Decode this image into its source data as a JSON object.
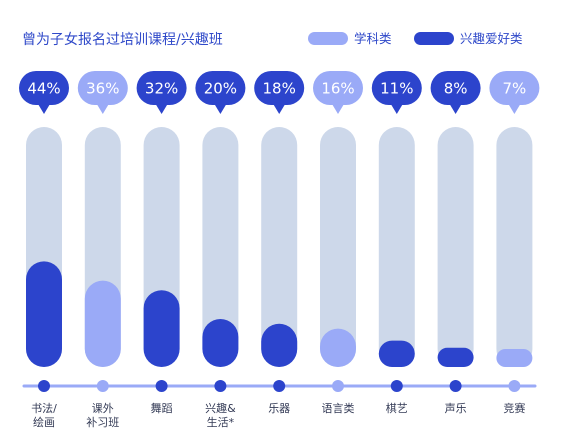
{
  "chart_data": {
    "type": "bar",
    "title": "曾为子女报名过培训课程/兴趣班",
    "unit": "%",
    "legend": {
      "placement": "top-right"
    },
    "legend_items": [
      {
        "name": "学科类",
        "color": "#9aaaf7"
      },
      {
        "name": "兴趣爱好类",
        "color": "#2c44cc"
      }
    ],
    "categories": [
      {
        "label_lines": [
          "书法/",
          "绘画"
        ],
        "value": 44,
        "value_label": "44%",
        "group": 1
      },
      {
        "label_lines": [
          "课外",
          "补习班"
        ],
        "value": 36,
        "value_label": "36%",
        "group": 0
      },
      {
        "label_lines": [
          "舞蹈"
        ],
        "value": 32,
        "value_label": "32%",
        "group": 1
      },
      {
        "label_lines": [
          "兴趣&",
          "生活*"
        ],
        "value": 20,
        "value_label": "20%",
        "group": 1
      },
      {
        "label_lines": [
          "乐器"
        ],
        "value": 18,
        "value_label": "18%",
        "group": 1
      },
      {
        "label_lines": [
          "语言类"
        ],
        "value": 16,
        "value_label": "16%",
        "group": 0
      },
      {
        "label_lines": [
          "棋艺"
        ],
        "value": 11,
        "value_label": "11%",
        "group": 1
      },
      {
        "label_lines": [
          "声乐"
        ],
        "value": 8,
        "value_label": "8%",
        "group": 1
      },
      {
        "label_lines": [
          "竞赛"
        ],
        "value": 7,
        "value_label": "7%",
        "group": 0
      }
    ],
    "ylim": [
      0,
      100
    ],
    "colors": {
      "track": "#cdd8ea",
      "axis_line": "#9aaaf7",
      "dark": "#2c44cc",
      "light": "#9aaaf7"
    }
  }
}
